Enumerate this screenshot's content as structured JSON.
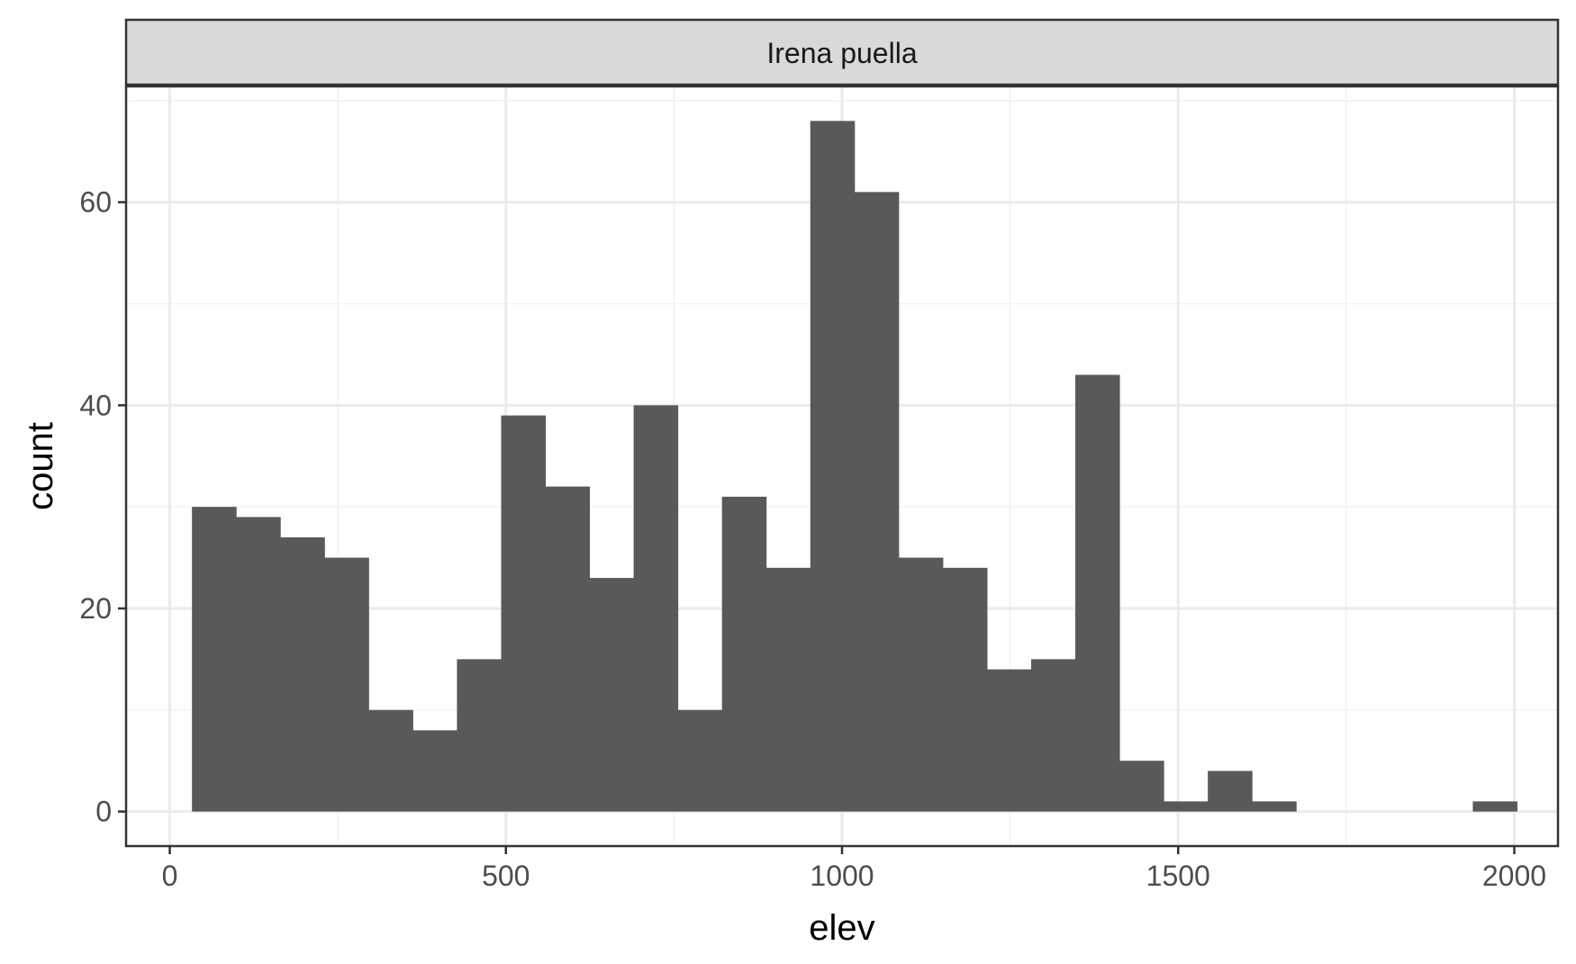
{
  "chart_data": {
    "type": "bar",
    "facet_label": "Irena puella",
    "xlabel": "elev",
    "ylabel": "count",
    "xlim": [
      -65,
      2065
    ],
    "ylim": [
      -3.4,
      71.4
    ],
    "x_ticks": [
      0,
      500,
      1000,
      1500,
      2000
    ],
    "x_minor": [
      250,
      750,
      1250,
      1750
    ],
    "y_ticks": [
      0,
      20,
      40,
      60
    ],
    "y_minor": [
      10,
      30,
      50,
      70
    ],
    "bin_width": 65.7,
    "bins": [
      {
        "x0": 33,
        "count": 30
      },
      {
        "x0": 98.7,
        "count": 29
      },
      {
        "x0": 164.4,
        "count": 27
      },
      {
        "x0": 230.1,
        "count": 25
      },
      {
        "x0": 295.8,
        "count": 10
      },
      {
        "x0": 361.5,
        "count": 8
      },
      {
        "x0": 427.2,
        "count": 15
      },
      {
        "x0": 492.9,
        "count": 39
      },
      {
        "x0": 558.6,
        "count": 32
      },
      {
        "x0": 624.3,
        "count": 23
      },
      {
        "x0": 690,
        "count": 40
      },
      {
        "x0": 755.7,
        "count": 10
      },
      {
        "x0": 821.4,
        "count": 31
      },
      {
        "x0": 887.1,
        "count": 24
      },
      {
        "x0": 952.8,
        "count": 68
      },
      {
        "x0": 1018.5,
        "count": 61
      },
      {
        "x0": 1084.2,
        "count": 25
      },
      {
        "x0": 1149.9,
        "count": 24
      },
      {
        "x0": 1215.6,
        "count": 14
      },
      {
        "x0": 1281.3,
        "count": 15
      },
      {
        "x0": 1347,
        "count": 43
      },
      {
        "x0": 1412.7,
        "count": 5
      },
      {
        "x0": 1478.4,
        "count": 1
      },
      {
        "x0": 1544.1,
        "count": 4
      },
      {
        "x0": 1609.8,
        "count": 1
      },
      {
        "x0": 1675.5,
        "count": 0
      },
      {
        "x0": 1741.2,
        "count": 0
      },
      {
        "x0": 1806.9,
        "count": 0
      },
      {
        "x0": 1872.6,
        "count": 0
      },
      {
        "x0": 1938.3,
        "count": 1
      }
    ],
    "bar_color": "#595959",
    "grid": true,
    "legend": "none"
  }
}
